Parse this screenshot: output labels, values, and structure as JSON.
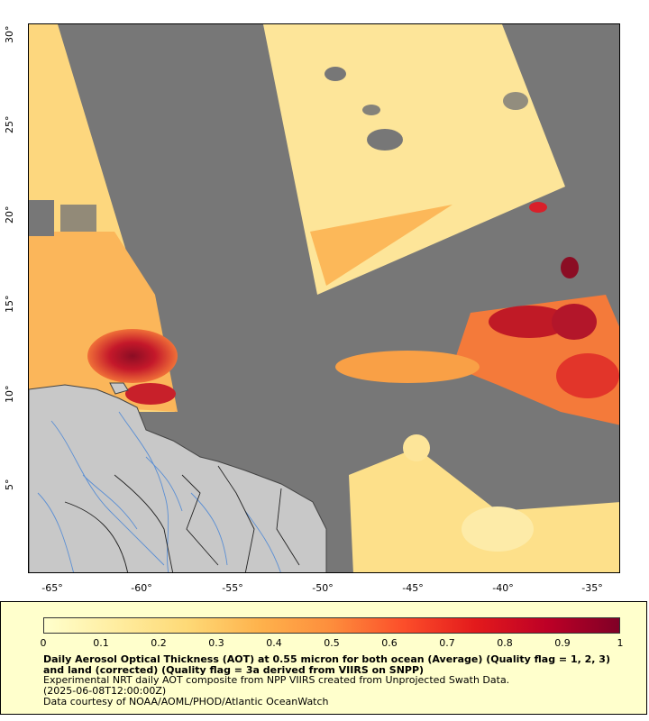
{
  "map": {
    "y_ticks": [
      "30°",
      "25°",
      "20°",
      "15°",
      "10°",
      "5°"
    ],
    "x_ticks": [
      "-65°",
      "-60°",
      "-55°",
      "-50°",
      "-45°",
      "-40°",
      "-35°"
    ],
    "lat_range": [
      0,
      30.5
    ],
    "lon_range": [
      -66,
      -33.5
    ],
    "colors": {
      "no_data": "#777777",
      "land": "#c8c8c8",
      "rivers": "#5b8fd4",
      "borders": "#222222"
    }
  },
  "legend": {
    "tick_labels": [
      "0",
      "0.1",
      "0.2",
      "0.3",
      "0.4",
      "0.5",
      "0.6",
      "0.7",
      "0.8",
      "0.9",
      "1"
    ],
    "colorbar_colors": [
      "#ffffcc",
      "#ffeda0",
      "#fed976",
      "#feb24c",
      "#fd8d3c",
      "#fc4e2a",
      "#e31a1c",
      "#bd0026",
      "#800026"
    ],
    "title": "Daily Aerosol Optical Thickness (AOT) at 0.55 micron for both ocean (Average) (Quality flag = 1, 2, 3) and land (corrected) (Quality flag = 3a derived from VIIRS on SNPP)",
    "line1": "Experimental NRT daily AOT composite from NPP VIIRS created from Unprojected Swath Data.",
    "line2": "(2025-06-08T12:00:00Z)",
    "line3": "Data courtesy of NOAA/AOML/PHOD/Atlantic OceanWatch"
  }
}
